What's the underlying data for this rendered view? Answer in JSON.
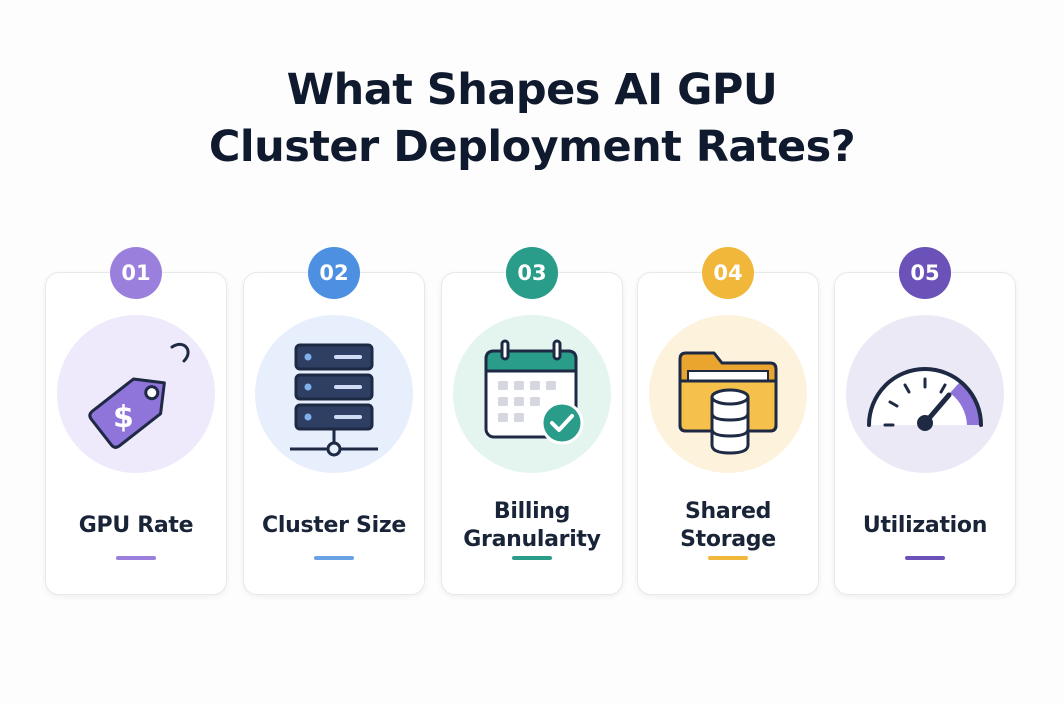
{
  "title": {
    "line1": "What Shapes AI GPU",
    "line2": "Cluster Deployment Rates?"
  },
  "cards": [
    {
      "number": "01",
      "label_line1": "GPU Rate",
      "label_line2": "",
      "icon": "price-tag-dollar-icon",
      "color": "#8b6fd6",
      "halo": "#efeafb"
    },
    {
      "number": "02",
      "label_line1": "Cluster Size",
      "label_line2": "",
      "icon": "server-rack-icon",
      "color": "#4d8fe0",
      "halo": "#e6effb"
    },
    {
      "number": "03",
      "label_line1": "Billing",
      "label_line2": "Granularity",
      "icon": "calendar-check-icon",
      "color": "#2a9c8a",
      "halo": "#e4f4ef"
    },
    {
      "number": "04",
      "label_line1": "Shared",
      "label_line2": "Storage",
      "icon": "folder-database-icon",
      "color": "#f0b73a",
      "halo": "#fdf2dc"
    },
    {
      "number": "05",
      "label_line1": "Utilization",
      "label_line2": "",
      "icon": "speedometer-gauge-icon",
      "color": "#6a52b8",
      "halo": "#ece9f6"
    }
  ]
}
